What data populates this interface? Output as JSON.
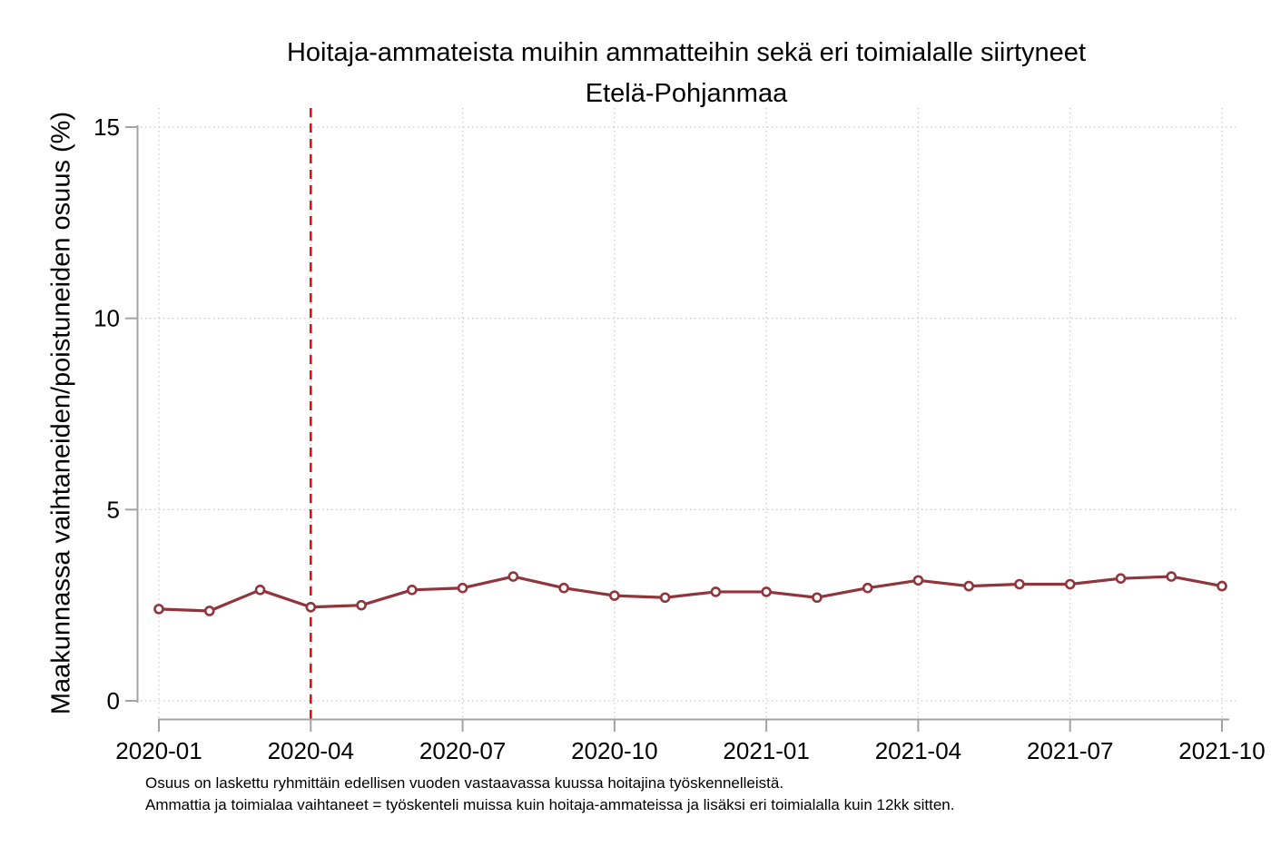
{
  "title": "Hoitaja-ammateista muihin ammatteihin sekä eri toimialalle siirtyneet",
  "subtitle": "Etelä-Pohjanmaa",
  "y_axis_label": "Maakunnassa vaihtaneiden/poistuneiden osuus (%)",
  "footnotes": {
    "line1": "Osuus on laskettu ryhmittäin edellisen vuoden vastaavassa kuussa hoitajina työskennelleistä.",
    "line2": "Ammattia ja toimialaa vaihtaneet = työskenteli muissa kuin hoitaja-ammateissa ja lisäksi eri toimialalla kuin 12kk sitten."
  },
  "colors": {
    "line": "#90353B",
    "marker_fill": "#FFFFFF",
    "reference_line": "#FF0000",
    "axis": "#A3A3A3",
    "grid": "#C8C8C8",
    "text": "#000000",
    "background": "#FFFFFF"
  },
  "chart_data": {
    "type": "line",
    "x": [
      "2020-01",
      "2020-02",
      "2020-03",
      "2020-04",
      "2020-05",
      "2020-06",
      "2020-07",
      "2020-08",
      "2020-09",
      "2020-10",
      "2020-11",
      "2020-12",
      "2021-01",
      "2021-02",
      "2021-03",
      "2021-04",
      "2021-05",
      "2021-06",
      "2021-07",
      "2021-08",
      "2021-09",
      "2021-10"
    ],
    "values": [
      2.4,
      2.35,
      2.9,
      2.45,
      2.5,
      2.9,
      2.95,
      3.25,
      2.95,
      2.75,
      2.7,
      2.85,
      2.85,
      2.7,
      2.95,
      3.15,
      3.0,
      3.05,
      3.05,
      3.2,
      3.25,
      3.0
    ],
    "x_tick_labels": [
      "2020-01",
      "2020-04",
      "2020-07",
      "2020-10",
      "2021-01",
      "2021-04",
      "2021-07",
      "2021-10"
    ],
    "y_ticks": [
      0,
      5,
      10,
      15
    ],
    "ylim": [
      0,
      15
    ],
    "reference_line_x": "2020-04",
    "grid": true,
    "legend": "none",
    "marker": "circle-open",
    "title": "Hoitaja-ammateista muihin ammatteihin sekä eri toimialalle siirtyneet",
    "subtitle": "Etelä-Pohjanmaa",
    "xlabel": "",
    "ylabel": "Maakunnassa vaihtaneiden/poistuneiden osuus (%)"
  }
}
